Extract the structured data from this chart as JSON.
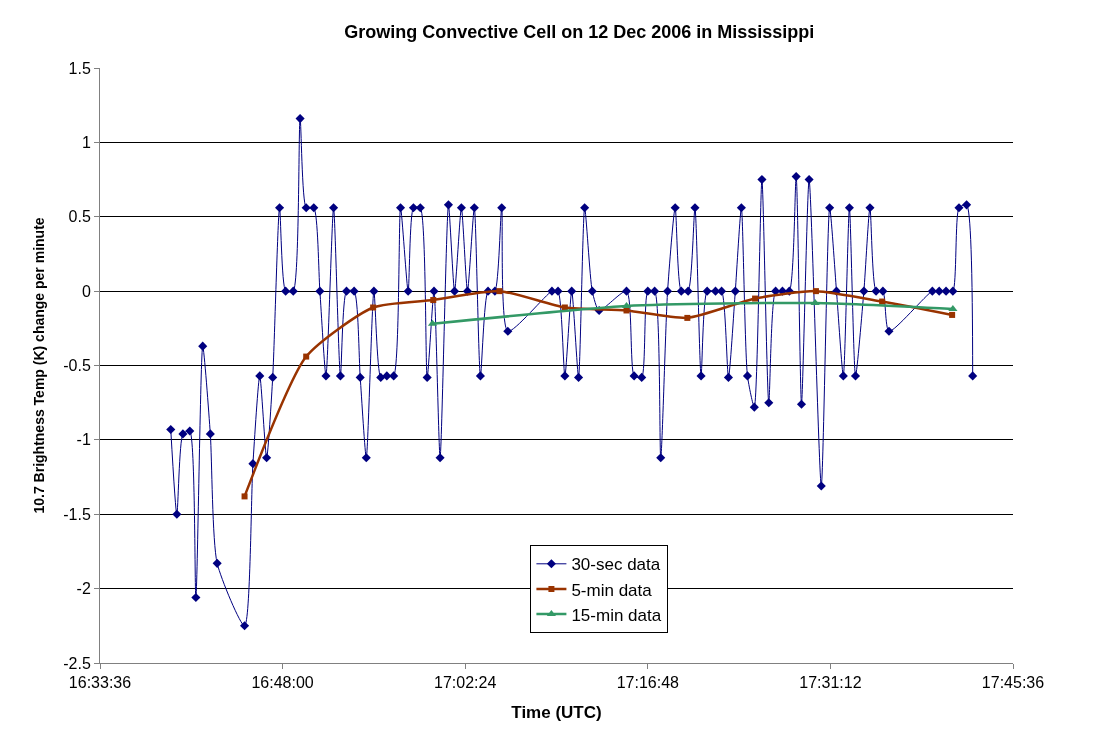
{
  "chart_data": {
    "type": "line",
    "title": "Growing Convective Cell on 12 Dec 2006 in Mississippi",
    "xlabel": "Time (UTC)",
    "ylabel": "10.7 Brightness Temp (K) change per minute",
    "xlim": [
      16.56,
      17.76
    ],
    "xticks": [
      {
        "value": 16.56,
        "label": "16:33:36"
      },
      {
        "value": 16.8,
        "label": "16:48:00"
      },
      {
        "value": 17.04,
        "label": "17:02:24"
      },
      {
        "value": 17.28,
        "label": "17:16:48"
      },
      {
        "value": 17.52,
        "label": "17:31:12"
      },
      {
        "value": 17.76,
        "label": "17:45:36"
      }
    ],
    "ylim": [
      -2.5,
      1.5
    ],
    "yticks": [
      -2.5,
      -2,
      -1.5,
      -1,
      -0.5,
      0,
      0.5,
      1,
      1.5
    ],
    "grid": "y",
    "legend": "bottom",
    "line_style": "solid",
    "series": [
      {
        "name": "30-sec data",
        "color": "#000080",
        "marker": "diamond",
        "x": [
          16.653,
          16.661,
          16.669,
          16.678,
          16.686,
          16.695,
          16.705,
          16.714,
          16.75,
          16.761,
          16.77,
          16.779,
          16.787,
          16.796,
          16.804,
          16.814,
          16.823,
          16.831,
          16.841,
          16.849,
          16.857,
          16.867,
          16.876,
          16.884,
          16.894,
          16.902,
          16.91,
          16.92,
          16.929,
          16.937,
          16.946,
          16.955,
          16.965,
          16.972,
          16.981,
          16.99,
          16.999,
          17.007,
          17.018,
          17.026,
          17.035,
          17.043,
          17.052,
          17.06,
          17.07,
          17.079,
          17.088,
          17.096,
          17.154,
          17.162,
          17.171,
          17.18,
          17.189,
          17.197,
          17.207,
          17.216,
          17.252,
          17.262,
          17.272,
          17.28,
          17.289,
          17.297,
          17.306,
          17.316,
          17.324,
          17.333,
          17.342,
          17.35,
          17.358,
          17.369,
          17.377,
          17.386,
          17.395,
          17.403,
          17.411,
          17.42,
          17.43,
          17.439,
          17.448,
          17.457,
          17.466,
          17.475,
          17.482,
          17.492,
          17.508,
          17.519,
          17.528,
          17.537,
          17.545,
          17.553,
          17.564,
          17.572,
          17.58,
          17.589,
          17.597,
          17.654,
          17.663,
          17.672,
          17.681,
          17.689,
          17.699,
          17.707
        ],
        "values": [
          -0.93,
          -1.5,
          -0.96,
          -0.94,
          -2.06,
          -0.37,
          -0.96,
          -1.83,
          -2.25,
          -1.16,
          -0.57,
          -1.12,
          -0.58,
          0.56,
          0,
          0,
          1.16,
          0.56,
          0.56,
          0,
          -0.57,
          0.56,
          -0.57,
          0,
          0,
          -0.58,
          -1.12,
          0,
          -0.58,
          -0.57,
          -0.57,
          0.56,
          0,
          0.56,
          0.56,
          -0.58,
          0,
          -1.12,
          0.58,
          0,
          0.56,
          0,
          0.56,
          -0.57,
          0,
          0,
          0.56,
          -0.27,
          0,
          0,
          -0.57,
          0,
          -0.58,
          0.56,
          0,
          -0.13,
          0,
          -0.57,
          -0.58,
          0,
          0,
          -1.12,
          0,
          0.56,
          0,
          0,
          0.56,
          -0.57,
          0,
          0,
          0,
          -0.58,
          0,
          0.56,
          -0.57,
          -0.78,
          0.75,
          -0.75,
          0,
          0,
          0,
          0.77,
          -0.76,
          0.75,
          -1.31,
          0.56,
          0,
          -0.57,
          0.56,
          -0.57,
          0,
          0.56,
          0,
          0,
          -0.27,
          0,
          0,
          0,
          0,
          0.56,
          0.58,
          -0.57
        ]
      },
      {
        "name": "5-min data",
        "color": "#993300",
        "marker": "square",
        "x": [
          16.75,
          16.831,
          16.919,
          16.998,
          17.085,
          17.171,
          17.252,
          17.332,
          17.421,
          17.501,
          17.588,
          17.68
        ],
        "values": [
          -1.38,
          -0.44,
          -0.11,
          -0.06,
          0,
          -0.11,
          -0.13,
          -0.18,
          -0.05,
          0,
          -0.07,
          -0.16
        ]
      },
      {
        "name": "15-min data",
        "color": "#339966",
        "marker": "triangle",
        "x": [
          16.997,
          17.252,
          17.5,
          17.681
        ],
        "values": [
          -0.22,
          -0.1,
          -0.08,
          -0.12
        ]
      }
    ]
  }
}
